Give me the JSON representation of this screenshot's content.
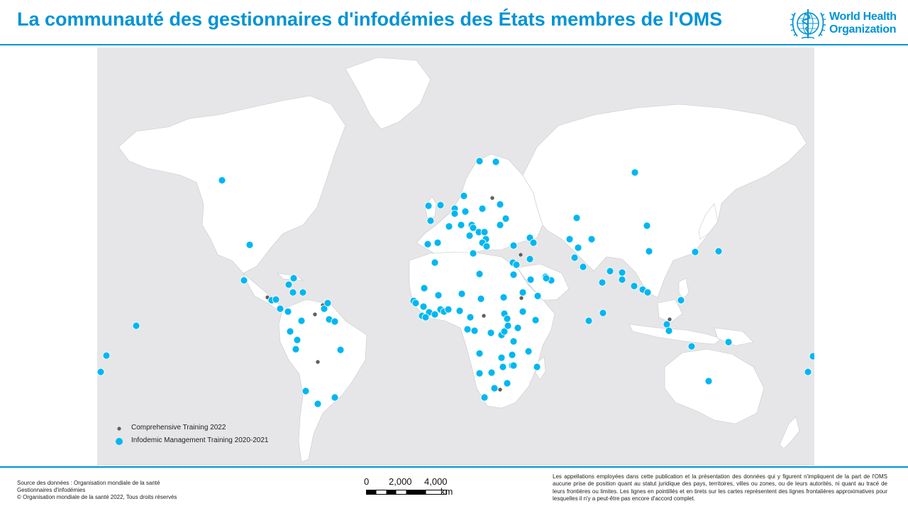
{
  "header": {
    "title": "La communauté des gestionnaires d'infodémies des États membres de l'OMS",
    "logo_text_line1": "World Health",
    "logo_text_line2": "Organization",
    "logo_icon": "who-emblem-icon"
  },
  "colors": {
    "brand": "#0093d5",
    "land": "#ffffff",
    "sea": "#e6e6e8",
    "infodemic_marker": "#00b7f1",
    "comprehensive_marker": "#5f5f5f"
  },
  "map": {
    "legend": {
      "items": [
        {
          "label": "Comprehensive Training 2022",
          "symbol": "small-dark-grey-dot"
        },
        {
          "label": "Infodemic Management Training 2020-2021",
          "symbol": "blue-dot"
        }
      ]
    }
  },
  "scale_bar": {
    "labels": [
      "0",
      "2,000",
      "4,000"
    ],
    "unit": "km"
  },
  "footer": {
    "source_lines": [
      "Source des données : Organisation mondiale de la santé",
      "Gestionnaires d'infodémies",
      "© Organisation mondiale de la santé 2022, Tous droits réservés"
    ],
    "disclaimer": "Les appellations employées dans cette publication et la présentation des données qui y figurent n'impliquent de la part de l'OMS aucune prise de position quant au statut juridique des pays, territoires, villes ou zones, ou de leurs autorités, ni quant au tracé de leurs frontières ou limites. Les lignes en pointillés et en tirets sur les cartes représentent des lignes frontalières approximatives pour lesquelles il n'y a peut-être pas encore d'accord complet."
  }
}
